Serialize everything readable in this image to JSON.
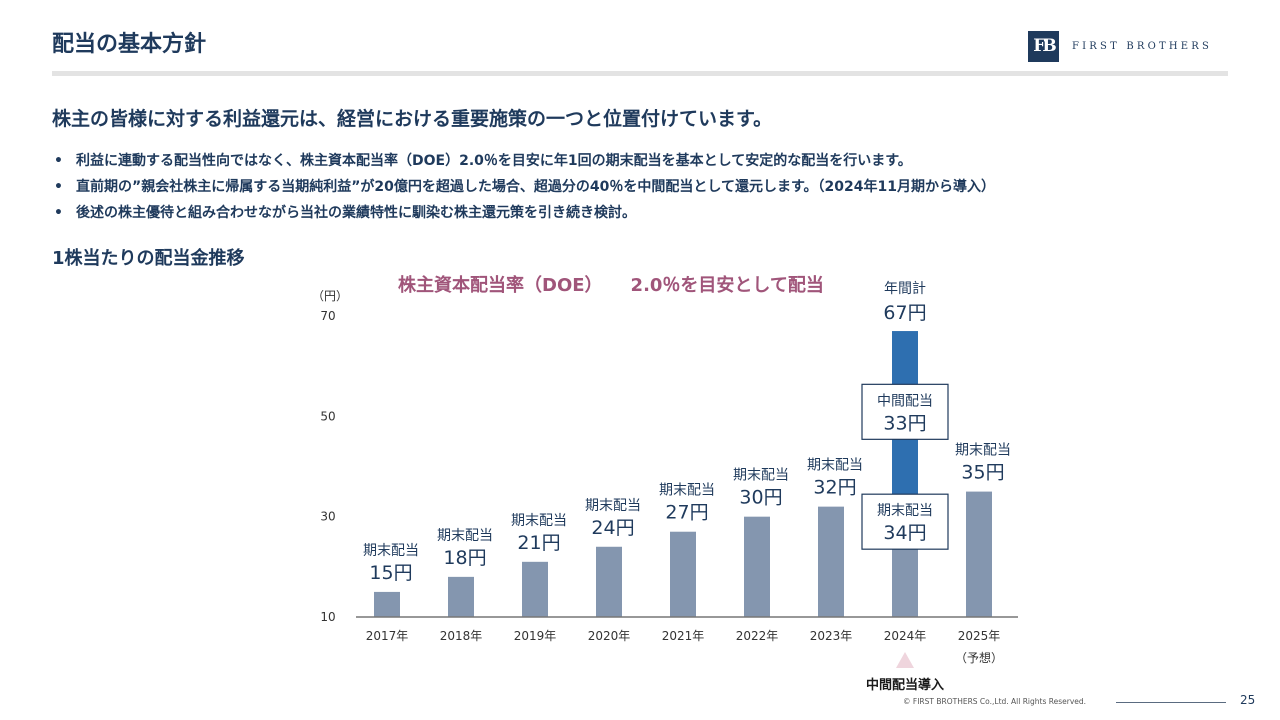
{
  "header": {
    "title": "配当の基本方針",
    "logo_mark": "FB",
    "logo_text": "FIRST BROTHERS"
  },
  "lead": "株主の皆様に対する利益還元は、経営における重要施策の一つと位置付けています。",
  "bullets": [
    "利益に連動する配当性向ではなく、株主資本配当率（DOE）2.0％を目安に年1回の期末配当を基本として安定的な配当を行います。",
    "直前期の”親会社株主に帰属する当期純利益”が20億円を超過した場合、超過分の40％を中間配当として還元します。（2024年11月期から導入）",
    "後述の株主優待と組み合わせながら当社の業績特性に馴染む株主還元策を引き続き検討。"
  ],
  "section_title": "1株当たりの配当金推移",
  "chart_headline": {
    "part1": "株主資本配当率（DOE）",
    "part2": "2.0％を目安として配当"
  },
  "chart_data": {
    "type": "bar",
    "stacked": true,
    "unit_label": "（円）",
    "yticks": [
      10,
      30,
      50,
      70
    ],
    "ylim": [
      10,
      70
    ],
    "categories": [
      "2017年",
      "2018年",
      "2019年",
      "2020年",
      "2021年",
      "2022年",
      "2023年",
      "2024年",
      "2025年"
    ],
    "category_notes": [
      "",
      "",
      "",
      "",
      "",
      "",
      "",
      "",
      "（予想）"
    ],
    "series": [
      {
        "name": "期末配当",
        "values": [
          15,
          18,
          21,
          24,
          27,
          30,
          32,
          34,
          35
        ]
      },
      {
        "name": "中間配当",
        "values": [
          0,
          0,
          0,
          0,
          0,
          0,
          0,
          33,
          0
        ]
      }
    ],
    "bar_labels": [
      {
        "label": "期末配当",
        "value": "15円"
      },
      {
        "label": "期末配当",
        "value": "18円"
      },
      {
        "label": "期末配当",
        "value": "21円"
      },
      {
        "label": "期末配当",
        "value": "24円"
      },
      {
        "label": "期末配当",
        "value": "27円"
      },
      {
        "label": "期末配当",
        "value": "30円"
      },
      {
        "label": "期末配当",
        "value": "32円"
      },
      null,
      {
        "label": "期末配当",
        "value": "35円"
      }
    ],
    "boxed_labels": [
      {
        "label": "中間配当",
        "value": "33円"
      },
      {
        "label": "期末配当",
        "value": "34円"
      }
    ],
    "total_label": {
      "label": "年間計",
      "value": "67円"
    },
    "marker_label": "中間配当導入",
    "colors": {
      "final": "#8496af",
      "interim": "#2e6fb0",
      "box_border": "#1f3a5c",
      "marker": "#efd5dd",
      "text": "#1f3a5c"
    }
  },
  "footer": {
    "copyright": "© FIRST BROTHERS Co.,Ltd. All Rights Reserved.",
    "page_number": "25"
  }
}
